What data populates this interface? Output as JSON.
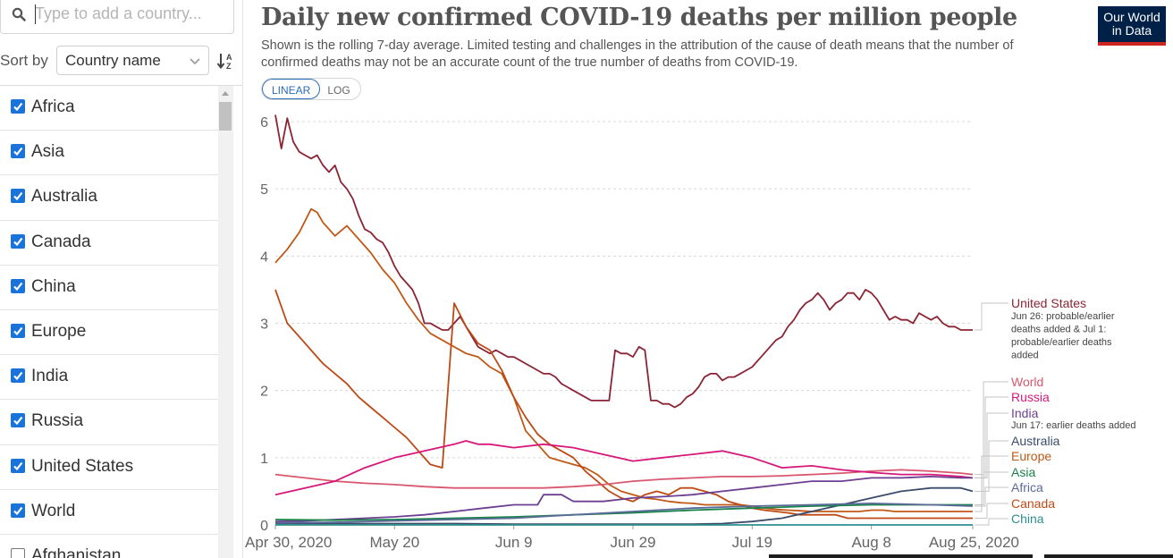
{
  "sidebar": {
    "search": {
      "placeholder": "Type to add a country..."
    },
    "sort": {
      "label": "Sort by",
      "value": "Country name"
    },
    "items": [
      {
        "label": "Africa",
        "checked": true
      },
      {
        "label": "Asia",
        "checked": true
      },
      {
        "label": "Australia",
        "checked": true
      },
      {
        "label": "Canada",
        "checked": true
      },
      {
        "label": "China",
        "checked": true
      },
      {
        "label": "Europe",
        "checked": true
      },
      {
        "label": "India",
        "checked": true
      },
      {
        "label": "Russia",
        "checked": true
      },
      {
        "label": "United States",
        "checked": true
      },
      {
        "label": "World",
        "checked": true
      },
      {
        "label": "Afghanistan",
        "checked": false
      }
    ]
  },
  "header": {
    "title": "Daily new confirmed COVID-19 deaths per million people",
    "subtitle": "Shown is the rolling 7-day average. Limited testing and challenges in the attribution of the cause of death means that the number of confirmed deaths may not be an accurate count of the true number of deaths from COVID-19.",
    "scale_linear": "LINEAR",
    "scale_log": "LOG",
    "logo_line1": "Our World",
    "logo_line2": "in Data"
  },
  "chart_data": {
    "type": "line",
    "title": "Daily new confirmed COVID-19 deaths per million people",
    "x_tick_labels": [
      "Apr 30, 2020",
      "May 20",
      "Jun 9",
      "Jun 29",
      "Jul 19",
      "Aug 8",
      "Aug 25, 2020"
    ],
    "x_tick_days": [
      0,
      20,
      40,
      60,
      80,
      100,
      117
    ],
    "y_ticks": [
      0,
      1,
      2,
      3,
      4,
      5,
      6
    ],
    "ylim": [
      0,
      6
    ],
    "xlim": [
      0,
      117
    ],
    "grid": "horizontal dashed",
    "series": [
      {
        "name": "United States",
        "color": "#8b2434",
        "note": "Jun 26: probable/earlier deaths added & Jul 1: probable/earlier deaths added",
        "x": [
          0,
          1,
          2,
          3,
          4,
          5,
          6,
          7,
          8,
          9,
          10,
          11,
          12,
          13,
          14,
          15,
          16,
          17,
          18,
          19,
          20,
          21,
          22,
          23,
          24,
          25,
          26,
          27,
          28,
          29,
          30,
          31,
          32,
          33,
          34,
          35,
          36,
          37,
          38,
          39,
          40,
          41,
          42,
          43,
          44,
          45,
          46,
          47,
          48,
          49,
          50,
          51,
          52,
          53,
          54,
          55,
          56,
          57,
          58,
          59,
          60,
          61,
          62,
          63,
          64,
          65,
          66,
          67,
          68,
          69,
          70,
          71,
          72,
          73,
          74,
          75,
          76,
          77,
          78,
          79,
          80,
          81,
          82,
          83,
          84,
          85,
          86,
          87,
          88,
          89,
          90,
          91,
          92,
          93,
          94,
          95,
          96,
          97,
          98,
          99,
          100,
          101,
          102,
          103,
          104,
          105,
          106,
          107,
          108,
          109,
          110,
          111,
          112,
          113,
          114,
          115,
          116,
          117
        ],
        "y": [
          6.1,
          5.6,
          6.05,
          5.7,
          5.55,
          5.5,
          5.45,
          5.5,
          5.35,
          5.25,
          5.35,
          5.1,
          5.0,
          4.85,
          4.6,
          4.4,
          4.35,
          4.25,
          4.2,
          4.05,
          3.85,
          3.7,
          3.6,
          3.5,
          3.3,
          3.0,
          3.0,
          2.95,
          2.9,
          2.9,
          3.0,
          3.1,
          2.95,
          2.8,
          2.65,
          2.6,
          2.55,
          2.6,
          2.55,
          2.5,
          2.5,
          2.45,
          2.4,
          2.35,
          2.3,
          2.25,
          2.25,
          2.2,
          2.1,
          2.05,
          2.0,
          1.95,
          1.9,
          1.85,
          1.85,
          1.85,
          1.85,
          2.6,
          2.55,
          2.55,
          2.5,
          2.65,
          2.6,
          1.85,
          1.85,
          1.8,
          1.8,
          1.75,
          1.8,
          1.9,
          1.95,
          2.05,
          2.2,
          2.25,
          2.25,
          2.15,
          2.2,
          2.2,
          2.25,
          2.3,
          2.35,
          2.45,
          2.55,
          2.65,
          2.75,
          2.8,
          2.95,
          3.05,
          3.2,
          3.3,
          3.35,
          3.45,
          3.35,
          3.2,
          3.3,
          3.35,
          3.45,
          3.45,
          3.35,
          3.5,
          3.45,
          3.35,
          3.2,
          3.05,
          3.1,
          3.05,
          3.05,
          3.0,
          3.15,
          3.1,
          3.05,
          3.1,
          3.0,
          2.95,
          2.95,
          2.9,
          2.9,
          2.9
        ]
      },
      {
        "name": "Europe",
        "color": "#c05917",
        "x": [
          0,
          2,
          4,
          6,
          7,
          8,
          10,
          12,
          14,
          16,
          18,
          20,
          22,
          24,
          26,
          28,
          30,
          32,
          34,
          36,
          38,
          40,
          42,
          44,
          46,
          48,
          50,
          52,
          54,
          56,
          58,
          60,
          62,
          64,
          66,
          68,
          70,
          72,
          74,
          76,
          78,
          80,
          82,
          84,
          86,
          88,
          90,
          92,
          94,
          96,
          98,
          100,
          102,
          104,
          106,
          108,
          110,
          112,
          114,
          116,
          117
        ],
        "y": [
          3.9,
          4.1,
          4.35,
          4.7,
          4.65,
          4.5,
          4.3,
          4.45,
          4.25,
          4.05,
          3.8,
          3.6,
          3.3,
          3.05,
          2.85,
          2.75,
          2.65,
          2.55,
          2.5,
          2.35,
          2.25,
          1.9,
          1.4,
          1.2,
          1.0,
          0.95,
          0.9,
          0.85,
          0.75,
          0.6,
          0.5,
          0.45,
          0.4,
          0.38,
          0.35,
          0.33,
          0.32,
          0.3,
          0.3,
          0.3,
          0.3,
          0.28,
          0.25,
          0.23,
          0.22,
          0.21,
          0.2,
          0.2,
          0.2,
          0.2,
          0.2,
          0.22,
          0.22,
          0.2,
          0.2,
          0.2,
          0.2,
          0.2,
          0.2,
          0.2,
          0.2
        ]
      },
      {
        "name": "Canada",
        "color": "#bd4a16",
        "x": [
          0,
          2,
          4,
          6,
          8,
          10,
          12,
          14,
          16,
          18,
          20,
          22,
          24,
          26,
          28,
          30,
          32,
          34,
          36,
          38,
          40,
          42,
          44,
          46,
          48,
          50,
          52,
          54,
          56,
          58,
          60,
          62,
          64,
          66,
          68,
          70,
          72,
          74,
          76,
          78,
          80,
          82,
          84,
          86,
          88,
          90,
          92,
          94,
          96,
          98,
          100,
          102,
          104,
          106,
          108,
          110,
          112,
          114,
          116,
          117
        ],
        "y": [
          3.5,
          3.0,
          2.8,
          2.6,
          2.4,
          2.25,
          2.1,
          1.9,
          1.75,
          1.6,
          1.45,
          1.3,
          1.1,
          0.9,
          0.85,
          3.3,
          2.95,
          2.7,
          2.6,
          2.3,
          1.9,
          1.6,
          1.35,
          1.2,
          1.1,
          1.0,
          0.8,
          0.65,
          0.5,
          0.4,
          0.35,
          0.45,
          0.5,
          0.45,
          0.55,
          0.55,
          0.5,
          0.45,
          0.35,
          0.3,
          0.25,
          0.22,
          0.2,
          0.18,
          0.15,
          0.15,
          0.15,
          0.15,
          0.1,
          0.1,
          0.1,
          0.1,
          0.1,
          0.1,
          0.1,
          0.1,
          0.1,
          0.1,
          0.1,
          0.1
        ]
      },
      {
        "name": "World",
        "color": "#d8576e",
        "x": [
          0,
          5,
          10,
          15,
          20,
          25,
          30,
          35,
          40,
          45,
          50,
          55,
          60,
          65,
          70,
          75,
          80,
          85,
          90,
          95,
          100,
          105,
          110,
          115,
          117
        ],
        "y": [
          0.75,
          0.7,
          0.65,
          0.62,
          0.6,
          0.57,
          0.55,
          0.55,
          0.55,
          0.55,
          0.57,
          0.6,
          0.65,
          0.68,
          0.7,
          0.72,
          0.72,
          0.73,
          0.75,
          0.77,
          0.8,
          0.82,
          0.8,
          0.77,
          0.75
        ]
      },
      {
        "name": "Russia",
        "color": "#d6187a",
        "x": [
          0,
          5,
          10,
          15,
          20,
          25,
          30,
          32,
          34,
          36,
          40,
          45,
          50,
          55,
          60,
          65,
          70,
          75,
          80,
          85,
          90,
          95,
          100,
          105,
          110,
          115,
          117
        ],
        "y": [
          0.45,
          0.55,
          0.65,
          0.85,
          1.0,
          1.1,
          1.2,
          1.25,
          1.2,
          1.2,
          1.15,
          1.2,
          1.15,
          1.05,
          0.95,
          1.0,
          1.05,
          1.1,
          1.0,
          0.85,
          0.88,
          0.82,
          0.78,
          0.75,
          0.75,
          0.72,
          0.7
        ]
      },
      {
        "name": "India",
        "color": "#6d3f90",
        "note": "Jun 17: earlier deaths added",
        "x": [
          0,
          5,
          10,
          15,
          20,
          25,
          30,
          35,
          40,
          44,
          45,
          48,
          50,
          55,
          60,
          65,
          70,
          75,
          80,
          85,
          90,
          95,
          100,
          105,
          110,
          115,
          117
        ],
        "y": [
          0.05,
          0.06,
          0.08,
          0.1,
          0.12,
          0.15,
          0.2,
          0.25,
          0.3,
          0.3,
          0.45,
          0.45,
          0.35,
          0.35,
          0.4,
          0.42,
          0.45,
          0.5,
          0.55,
          0.6,
          0.65,
          0.65,
          0.7,
          0.7,
          0.72,
          0.7,
          0.7
        ]
      },
      {
        "name": "Australia",
        "color": "#3a4c6a",
        "x": [
          0,
          10,
          20,
          30,
          40,
          50,
          60,
          70,
          75,
          80,
          85,
          90,
          95,
          100,
          105,
          110,
          115,
          117
        ],
        "y": [
          0.02,
          0.02,
          0.02,
          0.02,
          0.01,
          0.01,
          0.01,
          0.01,
          0.02,
          0.05,
          0.1,
          0.2,
          0.3,
          0.4,
          0.5,
          0.55,
          0.55,
          0.5
        ]
      },
      {
        "name": "Asia",
        "color": "#18834a",
        "x": [
          0,
          10,
          20,
          30,
          40,
          50,
          60,
          70,
          80,
          90,
          100,
          110,
          117
        ],
        "y": [
          0.08,
          0.07,
          0.08,
          0.1,
          0.12,
          0.15,
          0.18,
          0.22,
          0.25,
          0.28,
          0.3,
          0.3,
          0.3
        ]
      },
      {
        "name": "Africa",
        "color": "#5c6a9a",
        "x": [
          0,
          10,
          20,
          30,
          40,
          50,
          60,
          70,
          80,
          90,
          100,
          110,
          117
        ],
        "y": [
          0.03,
          0.04,
          0.06,
          0.08,
          0.1,
          0.15,
          0.2,
          0.25,
          0.28,
          0.3,
          0.32,
          0.3,
          0.28
        ]
      },
      {
        "name": "China",
        "color": "#2c8f8d",
        "x": [
          0,
          117
        ],
        "y": [
          0.0,
          0.0
        ]
      }
    ]
  }
}
